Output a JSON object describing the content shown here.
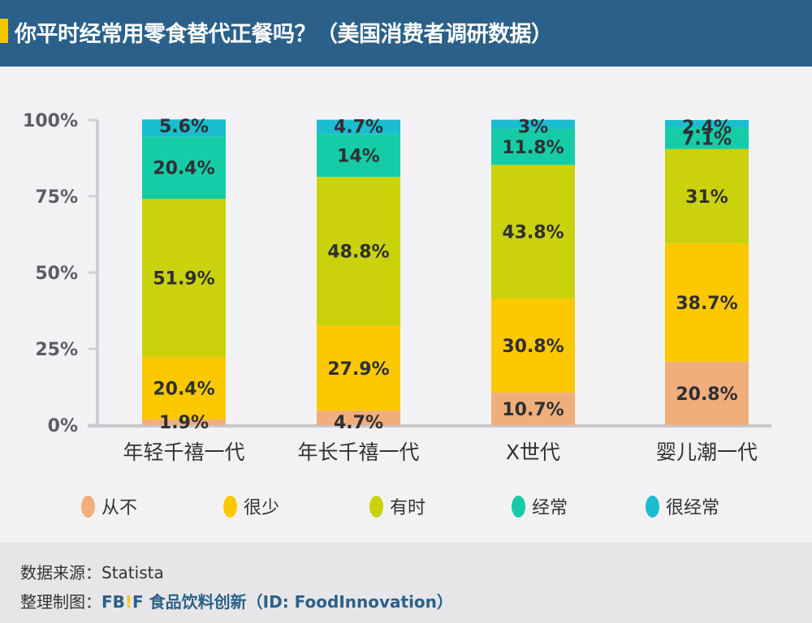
{
  "header": {
    "title": "你平时经常用零食替代正餐吗？（美国消费者调研数据）"
  },
  "chart_data": {
    "type": "bar",
    "stacked": true,
    "title": "你平时经常用零食替代正餐吗？（美国消费者调研数据）",
    "categories": [
      "年轻千禧一代",
      "年长千禧一代",
      "X世代",
      "婴儿潮一代"
    ],
    "series": [
      {
        "name": "从不",
        "color": "#efae7c",
        "values": [
          1.9,
          4.7,
          10.7,
          20.8
        ],
        "labels": [
          "1.9%",
          "4.7%",
          "10.7%",
          "20.8%"
        ]
      },
      {
        "name": "很少",
        "color": "#fcc800",
        "values": [
          20.4,
          27.9,
          30.8,
          38.7
        ],
        "labels": [
          "20.4%",
          "27.9%",
          "30.8%",
          "38.7%"
        ]
      },
      {
        "name": "有时",
        "color": "#c9d20b",
        "values": [
          51.9,
          48.8,
          43.8,
          31
        ],
        "labels": [
          "51.9%",
          "48.8%",
          "43.8%",
          "31%"
        ]
      },
      {
        "name": "经常",
        "color": "#16cca6",
        "values": [
          20.4,
          14,
          11.8,
          7.1
        ],
        "labels": [
          "20.4%",
          "14%",
          "11.8%",
          "7.1%"
        ]
      },
      {
        "name": "很经常",
        "color": "#1bbdd0",
        "values": [
          5.6,
          4.7,
          3,
          2.4
        ],
        "labels": [
          "5.6%",
          "4.7%",
          "3%",
          "2.4%"
        ]
      }
    ],
    "yticks": [
      "0%",
      "25%",
      "50%",
      "75%",
      "100%"
    ],
    "ytick_values": [
      0,
      25,
      50,
      75,
      100
    ],
    "ylim": [
      0,
      100
    ],
    "xlabel": "",
    "ylabel": "",
    "grid": false,
    "legend": "bottom"
  },
  "footer": {
    "source_label": "数据来源：",
    "source_value": "Statista",
    "credit_label": "整理制图：",
    "brand_fb": "FB",
    "brand_bang": "!",
    "brand_f": "F",
    "credit_value": " 食品饮料创新（ID: FoodInnovation）"
  }
}
